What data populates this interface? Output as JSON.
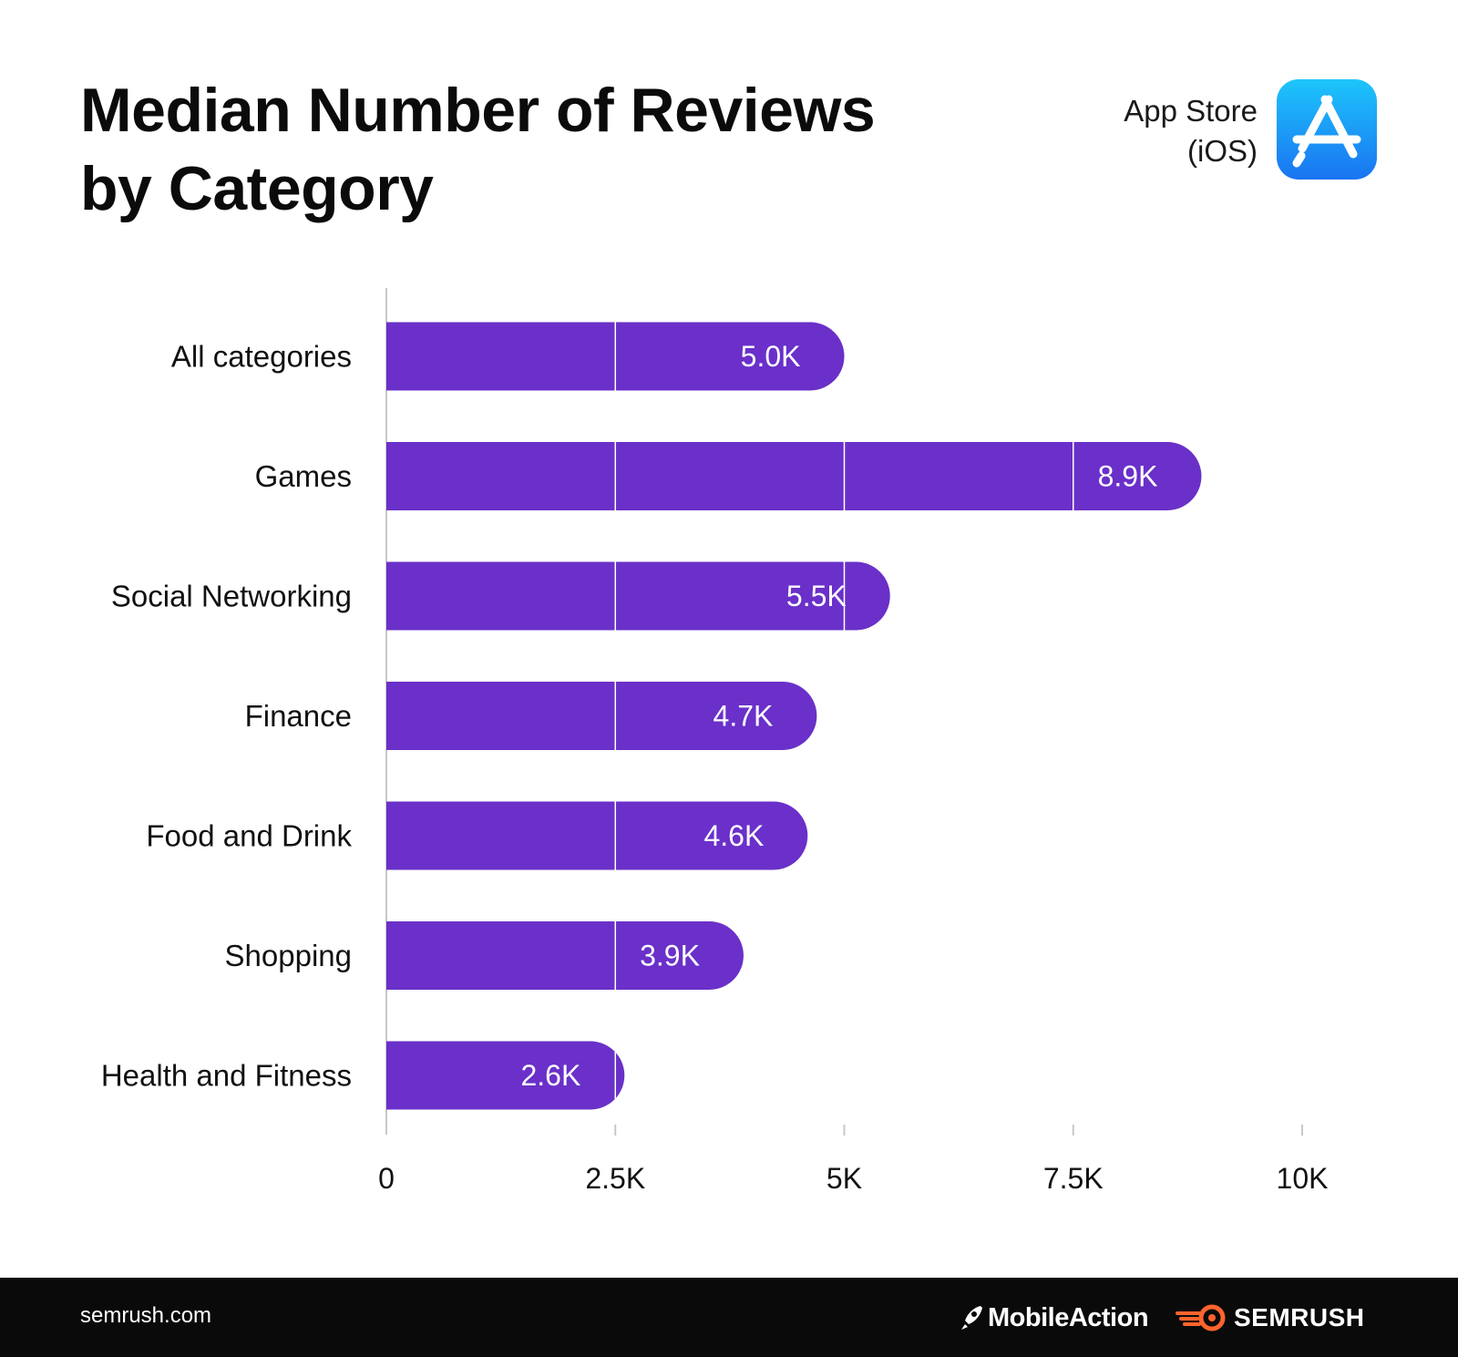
{
  "header": {
    "title_line1": "Median Number of Reviews",
    "title_line2": "by Category",
    "store_line1": "App Store",
    "store_line2": "(iOS)",
    "store_icon": "app-store-icon"
  },
  "chart_data": {
    "type": "bar",
    "orientation": "horizontal",
    "title": "Median Number of Reviews by Category",
    "categories": [
      "All categories",
      "Games",
      "Social Networking",
      "Finance",
      "Food and Drink",
      "Shopping",
      "Health and Fitness"
    ],
    "values": [
      5000,
      8900,
      5500,
      4700,
      4600,
      3900,
      2600
    ],
    "value_labels": [
      "5.0K",
      "8.9K",
      "5.5K",
      "4.7K",
      "4.6K",
      "3.9K",
      "2.6K"
    ],
    "x_ticks": [
      0,
      2500,
      5000,
      7500,
      10000
    ],
    "x_tick_labels": [
      "0",
      "2.5K",
      "5K",
      "7.5K",
      "10K"
    ],
    "xlim": [
      0,
      10000
    ],
    "xlabel": "",
    "ylabel": "",
    "grid": "vertical gridlines drawn in white over bars",
    "bar_color": "#6A30C9",
    "text_color": "#111111"
  },
  "footer": {
    "site": "semrush.com",
    "logo1": "MobileAction",
    "logo2": "SEMRUSH",
    "logo2_color": "#FF642D"
  }
}
